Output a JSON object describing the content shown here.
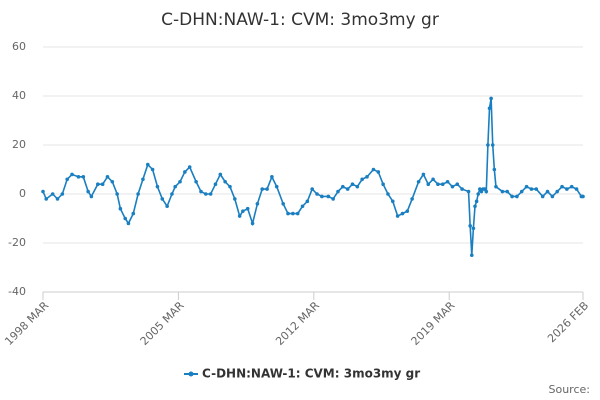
{
  "chart_data": {
    "type": "line",
    "title": "C-DHN:NAW-1: CVM: 3mo3my gr",
    "source": "Source:",
    "x": [
      "1998-03",
      "1998-05",
      "1998-09",
      "1998-12",
      "1999-03",
      "1999-06",
      "1999-09",
      "2000-01",
      "2000-04",
      "2000-07",
      "2000-09",
      "2001-01",
      "2001-04",
      "2001-07",
      "2001-10",
      "2002-01",
      "2002-03",
      "2002-06",
      "2002-08",
      "2002-11",
      "2003-02",
      "2003-05",
      "2003-08",
      "2003-11",
      "2004-02",
      "2004-05",
      "2004-08",
      "2004-11",
      "2005-01",
      "2005-04",
      "2005-07",
      "2005-10",
      "2006-02",
      "2006-05",
      "2006-08",
      "2006-11",
      "2007-02",
      "2007-05",
      "2007-08",
      "2007-11",
      "2008-02",
      "2008-05",
      "2008-07",
      "2008-10",
      "2009-01",
      "2009-04",
      "2009-07",
      "2009-10",
      "2010-01",
      "2010-04",
      "2010-08",
      "2010-11",
      "2011-02",
      "2011-05",
      "2011-08",
      "2011-11",
      "2012-02",
      "2012-05",
      "2012-08",
      "2012-12",
      "2013-03",
      "2013-06",
      "2013-09",
      "2013-12",
      "2014-03",
      "2014-06",
      "2014-09",
      "2014-12",
      "2015-04",
      "2015-07",
      "2015-10",
      "2016-01",
      "2016-04",
      "2016-07",
      "2016-10",
      "2017-01",
      "2017-04",
      "2017-08",
      "2017-11",
      "2018-02",
      "2018-05",
      "2018-08",
      "2018-11",
      "2019-02",
      "2019-05",
      "2019-08",
      "2019-11",
      "2020-03",
      "2020-04",
      "2020-05",
      "2020-06",
      "2020-07",
      "2020-08",
      "2020-09",
      "2020-10",
      "2020-11",
      "2020-12",
      "2021-01",
      "2021-02",
      "2021-03",
      "2021-04",
      "2021-05",
      "2021-06",
      "2021-07",
      "2021-08",
      "2021-12",
      "2022-03",
      "2022-06",
      "2022-09",
      "2022-12",
      "2023-03",
      "2023-06",
      "2023-09",
      "2024-01",
      "2024-04",
      "2024-07",
      "2024-10",
      "2025-01",
      "2025-04",
      "2025-07",
      "2025-10",
      "2026-01",
      "2026-02"
    ],
    "series": [
      {
        "name": "C-DHN:NAW-1: CVM: 3mo3my gr",
        "color": "#1a7fc1",
        "values": [
          1,
          -2,
          0,
          -2,
          0,
          6,
          8,
          7,
          7,
          1,
          -1,
          4,
          4,
          7,
          5,
          0,
          -6,
          -10,
          -12,
          -8,
          0,
          6,
          12,
          10,
          3,
          -2,
          -5,
          0,
          3,
          5,
          9,
          11,
          5,
          1,
          0,
          0,
          4,
          8,
          5,
          3,
          -2,
          -9,
          -7,
          -6,
          -12,
          -4,
          2,
          2,
          7,
          3,
          -4,
          -8,
          -8,
          -8,
          -5,
          -3,
          2,
          0,
          -1,
          -1,
          -2,
          1,
          3,
          2,
          4,
          3,
          6,
          7,
          10,
          9,
          4,
          0,
          -3,
          -9,
          -8,
          -7,
          -2,
          5,
          8,
          4,
          6,
          4,
          4,
          5,
          3,
          4,
          2,
          1,
          -13,
          -25,
          -14,
          -5,
          -3,
          0,
          2,
          1,
          2,
          2,
          1,
          20,
          35,
          39,
          20,
          10,
          3,
          1,
          1,
          -1,
          -1,
          1,
          3,
          2,
          2,
          -1,
          1,
          -1,
          1,
          3,
          2,
          3,
          2,
          -1,
          -1
        ]
      }
    ],
    "xlim": [
      "1998-03",
      "2026-02"
    ],
    "xticks": [
      {
        "value": "1998-03",
        "label": "1998 MAR"
      },
      {
        "value": "2005-03",
        "label": "2005 MAR"
      },
      {
        "value": "2012-03",
        "label": "2012 MAR"
      },
      {
        "value": "2019-03",
        "label": "2019 MAR"
      },
      {
        "value": "2026-02",
        "label": "2026 FEB"
      }
    ],
    "ylim": [
      -40,
      60
    ],
    "yticks": [
      -40,
      -20,
      0,
      20,
      40,
      60
    ],
    "grid": true,
    "legend": "bottom"
  }
}
